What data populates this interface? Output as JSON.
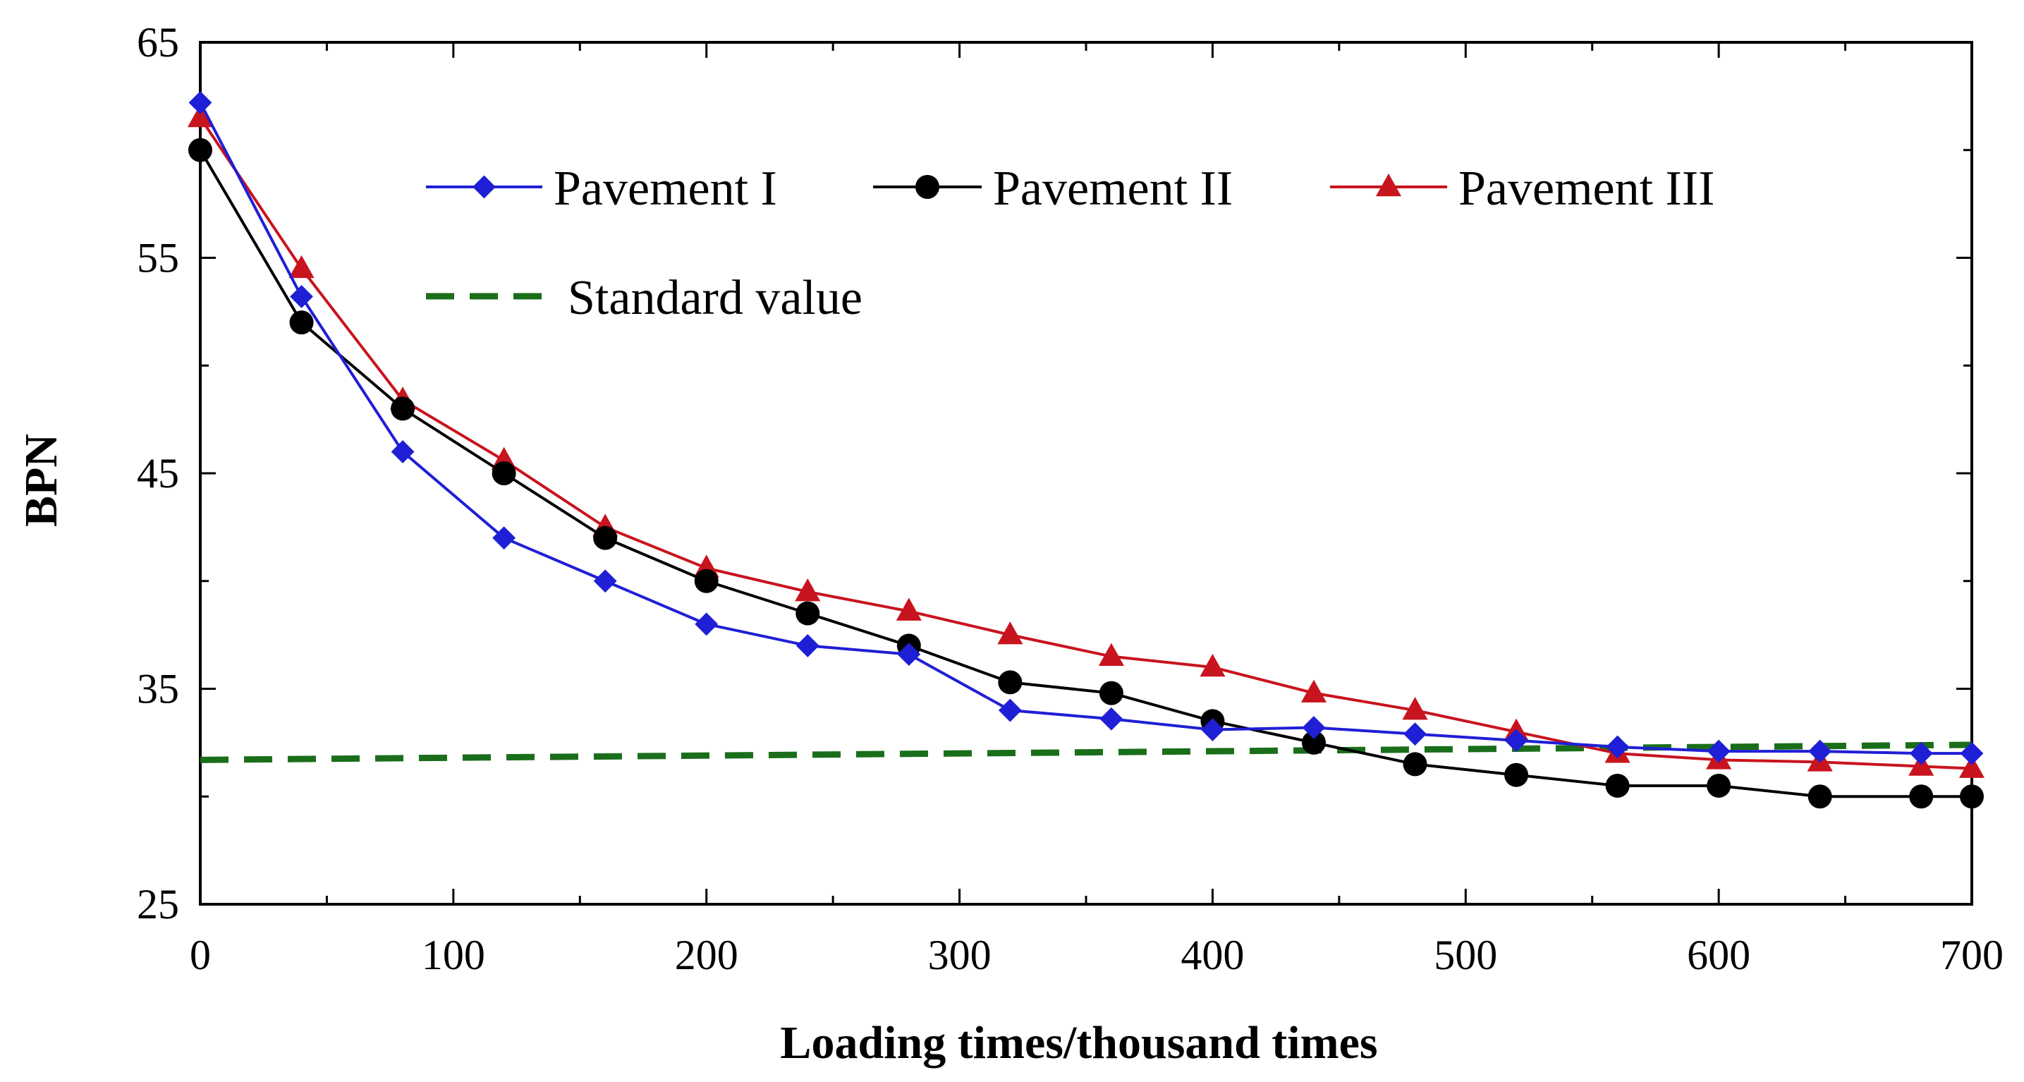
{
  "chart_data": {
    "type": "line",
    "title": "",
    "xlabel": "Loading times/thousand times",
    "ylabel": "BPN",
    "xlim": [
      0,
      700
    ],
    "ylim": [
      25,
      65
    ],
    "xticks": [
      0,
      100,
      200,
      300,
      400,
      500,
      600,
      700
    ],
    "yticks": [
      25,
      35,
      45,
      55,
      65
    ],
    "xtick_labels": [
      "0",
      "100",
      "200",
      "300",
      "400",
      "500",
      "600",
      "700"
    ],
    "ytick_labels": [
      "25",
      "35",
      "45",
      "55",
      "65"
    ],
    "grid": false,
    "legend_position": "top-center",
    "x": [
      0,
      40,
      80,
      120,
      160,
      200,
      240,
      280,
      320,
      360,
      400,
      440,
      480,
      520,
      560,
      600,
      640,
      680,
      700
    ],
    "series": [
      {
        "name": "Pavement I",
        "color": "#1f1fd6",
        "marker": "diamond",
        "values": [
          62.2,
          53.2,
          46.0,
          42.0,
          40.0,
          38.0,
          37.0,
          36.6,
          34.0,
          33.6,
          33.1,
          33.2,
          32.9,
          32.6,
          32.3,
          32.1,
          32.1,
          32.0,
          32.0
        ]
      },
      {
        "name": "Pavement II",
        "color": "#000000",
        "marker": "circle",
        "values": [
          60.0,
          52.0,
          48.0,
          45.0,
          42.0,
          40.0,
          38.5,
          37.0,
          35.3,
          34.8,
          33.5,
          32.5,
          31.5,
          31.0,
          30.5,
          30.5,
          30.0,
          30.0,
          30.0
        ]
      },
      {
        "name": "Pavement III",
        "color": "#c8141e",
        "marker": "triangle",
        "values": [
          61.5,
          54.5,
          48.4,
          45.6,
          42.5,
          40.6,
          39.5,
          38.6,
          37.5,
          36.5,
          36.0,
          34.8,
          34.0,
          33.0,
          32.0,
          31.7,
          31.6,
          31.4,
          31.3
        ]
      }
    ],
    "reference_line": {
      "name": "Standard value",
      "color": "#1a6e1a",
      "style": "dashed",
      "x": [
        0,
        700
      ],
      "values": [
        31.7,
        32.4
      ]
    }
  }
}
